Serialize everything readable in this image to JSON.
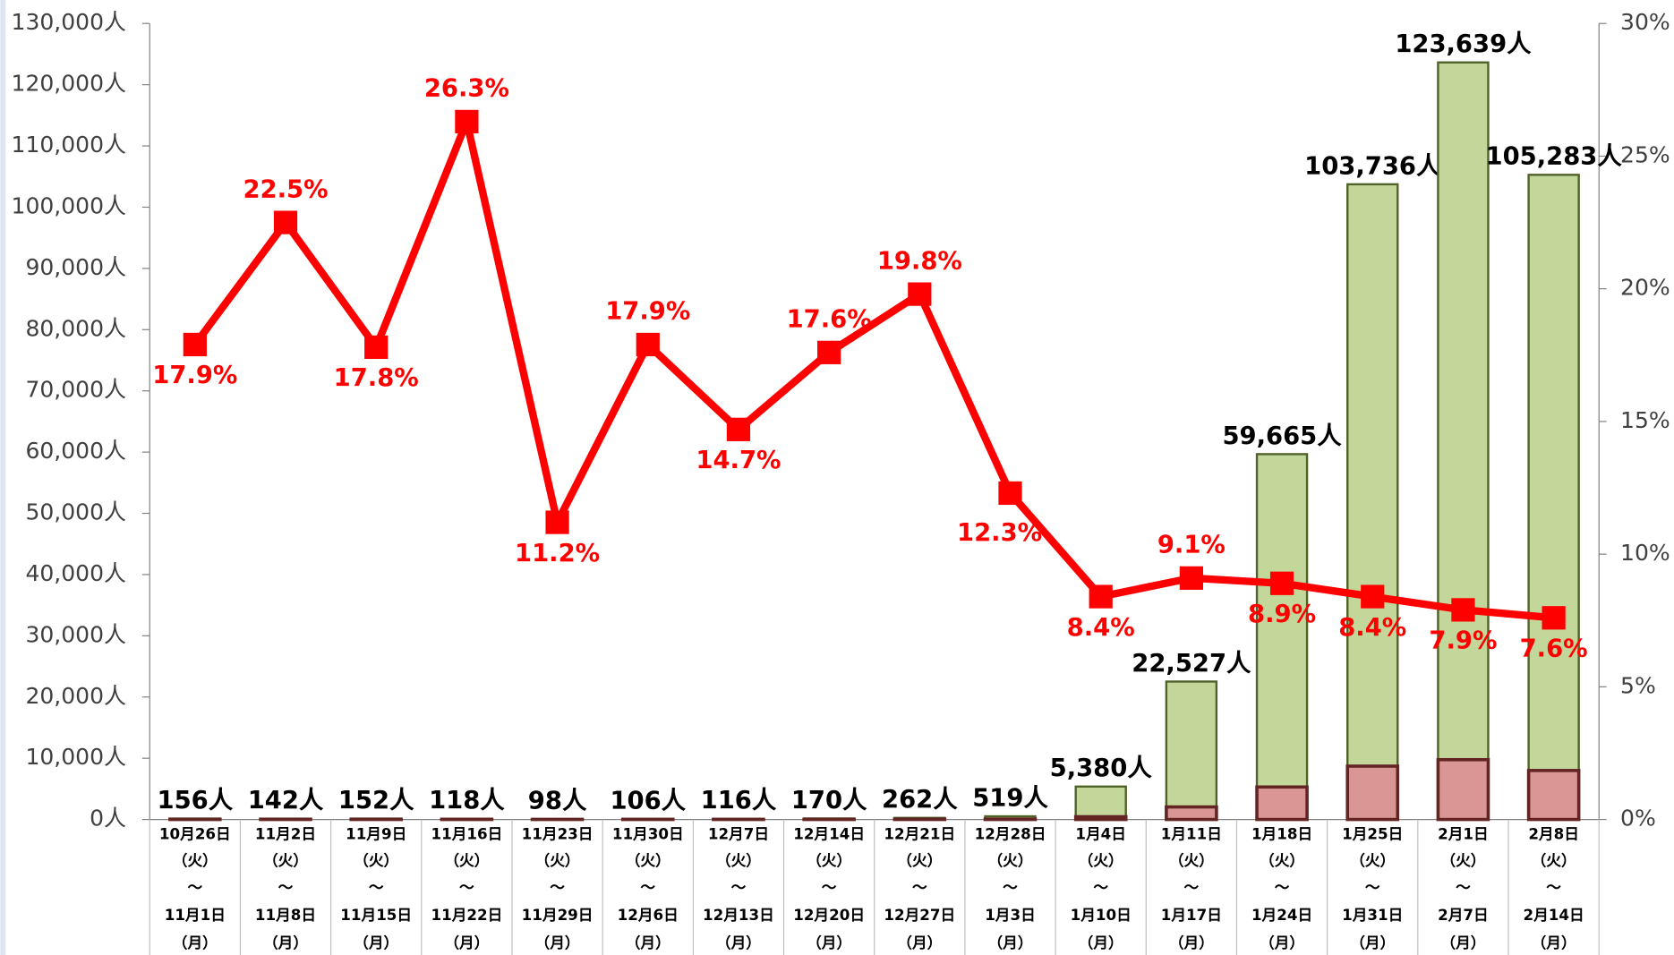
{
  "chart_data": {
    "type": "bar-line",
    "categories": [
      "10月26日\n（火）\n～\n11月1日\n（月）",
      "11月2日\n（火）\n～\n11月8日\n（月）",
      "11月9日\n（火）\n～\n11月15日\n（月）",
      "11月16日\n（火）\n～\n11月22日\n（月）",
      "11月23日\n（火）\n～\n11月29日\n（月）",
      "11月30日\n（火）\n～\n12月6日\n（月）",
      "12月7日\n（火）\n～\n12月13日\n（月）",
      "12月14日\n（火）\n～\n12月20日\n（月）",
      "12月21日\n（火）\n～\n12月27日\n（月）",
      "12月28日\n（火）\n～\n1月3日\n（月）",
      "1月4日\n（火）\n～\n1月10日\n（月）",
      "1月11日\n（火）\n～\n1月17日\n（月）",
      "1月18日\n（火）\n～\n1月24日\n（月）",
      "1月25日\n（火）\n～\n1月31日\n（月）",
      "2月1日\n（火）\n～\n2月7日\n（月）",
      "2月8日\n（火）\n～\n2月14日\n（月）"
    ],
    "series": [
      {
        "kind": "bar",
        "color": "#c4d79b",
        "stroke": "#4f6228",
        "values": [
          156,
          142,
          152,
          118,
          98,
          106,
          116,
          170,
          262,
          519,
          5380,
          22527,
          59665,
          103736,
          123639,
          105283
        ],
        "value_labels": [
          "156人",
          "142人",
          "152人",
          "118人",
          "98人",
          "106人",
          "116人",
          "170人",
          "262人",
          "519人",
          "5,380人",
          "22,527人",
          "59,665人",
          "103,736人",
          "123,639人",
          "105,283人"
        ]
      },
      {
        "kind": "bar",
        "color": "#da9694",
        "stroke": "#632523",
        "values": [
          28,
          32,
          27,
          31,
          11,
          19,
          17,
          30,
          52,
          64,
          452,
          2050,
          5310,
          8714,
          9768,
          8002
        ]
      },
      {
        "kind": "line",
        "axis": "y2",
        "color": "#ff0000",
        "values": [
          17.9,
          22.5,
          17.8,
          26.3,
          11.2,
          17.9,
          14.7,
          17.6,
          19.8,
          12.3,
          8.4,
          9.1,
          8.9,
          8.4,
          7.9,
          7.6
        ],
        "value_labels": [
          "17.9%",
          "22.5%",
          "17.8%",
          "26.3%",
          "11.2%",
          "17.9%",
          "14.7%",
          "17.6%",
          "19.8%",
          "12.3%",
          "8.4%",
          "9.1%",
          "8.9%",
          "8.4%",
          "7.9%",
          "7.6%"
        ]
      }
    ],
    "ylim": [
      0,
      130000
    ],
    "yticks": [
      {
        "value": 0,
        "label": "0人"
      },
      {
        "value": 10000,
        "label": "10,000人"
      },
      {
        "value": 20000,
        "label": "20,000人"
      },
      {
        "value": 30000,
        "label": "30,000人"
      },
      {
        "value": 40000,
        "label": "40,000人"
      },
      {
        "value": 50000,
        "label": "50,000人"
      },
      {
        "value": 60000,
        "label": "60,000人"
      },
      {
        "value": 70000,
        "label": "70,000人"
      },
      {
        "value": 80000,
        "label": "80,000人"
      },
      {
        "value": 90000,
        "label": "90,000人"
      },
      {
        "value": 100000,
        "label": "100,000人"
      },
      {
        "value": 110000,
        "label": "110,000人"
      },
      {
        "value": 120000,
        "label": "120,000人"
      },
      {
        "value": 130000,
        "label": "130,000人"
      }
    ],
    "y2lim": [
      0,
      30
    ],
    "y2ticks": [
      {
        "value": 0,
        "label": "0%"
      },
      {
        "value": 5,
        "label": "5%"
      },
      {
        "value": 10,
        "label": "10%"
      },
      {
        "value": 15,
        "label": "15%"
      },
      {
        "value": 20,
        "label": "20%"
      },
      {
        "value": 25,
        "label": "25%"
      },
      {
        "value": 30,
        "label": "30%"
      }
    ]
  }
}
